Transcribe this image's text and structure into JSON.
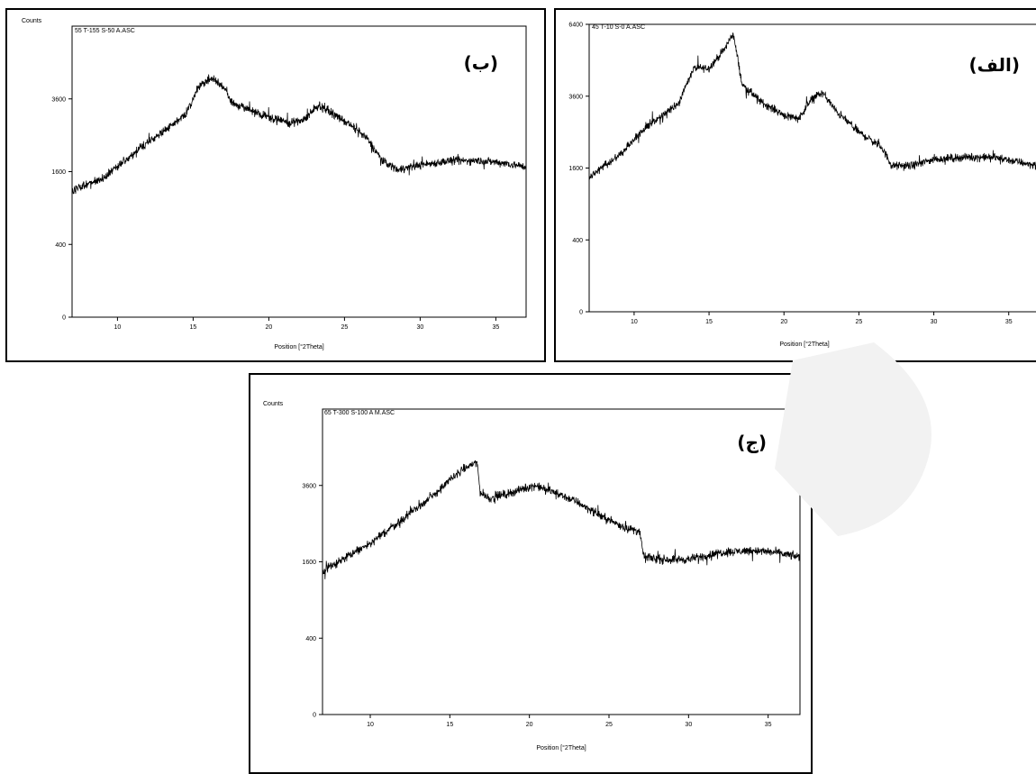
{
  "chart_data": [
    {
      "id": "b",
      "type": "line",
      "panel_label": "(ب)",
      "file_label": "55 T-155 S-50 A.ASC",
      "ylabel": "Counts",
      "xlabel": "Position [°2Theta]",
      "xlim": [
        7,
        37
      ],
      "ylim": [
        0,
        6400
      ],
      "y_scale": "sqrt",
      "xticks": [
        10,
        15,
        20,
        25,
        30,
        35
      ],
      "yticks": [
        0,
        400,
        1600,
        3600
      ],
      "grid": false,
      "profile_x": [
        7,
        9,
        11,
        13,
        14.5,
        15.5,
        16.3,
        17,
        17.5,
        19,
        20.5,
        21.5,
        22.5,
        23.3,
        24.5,
        25.5,
        26.5,
        27.5,
        28.5,
        30,
        32,
        34,
        35.5,
        37
      ],
      "profile_y": [
        1200,
        1450,
        2000,
        2600,
        3100,
        4100,
        4300,
        4000,
        3500,
        3200,
        2950,
        2850,
        3000,
        3400,
        3050,
        2750,
        2400,
        1850,
        1650,
        1750,
        1850,
        1850,
        1800,
        1700
      ]
    },
    {
      "id": "alef",
      "type": "line",
      "panel_label": "(الف)",
      "file_label": "45 T-10 S-0 A.ASC",
      "ylabel": "",
      "xlabel": "Position [°2Theta]",
      "xlim": [
        7,
        37
      ],
      "ylim": [
        0,
        6400
      ],
      "y_scale": "sqrt",
      "xticks": [
        10,
        15,
        20,
        25,
        30,
        35
      ],
      "yticks": [
        0,
        400,
        1600,
        3600,
        6400
      ],
      "grid": false,
      "profile_x": [
        7,
        9,
        11,
        13,
        14,
        15,
        16,
        16.6,
        17.2,
        18.5,
        20,
        21,
        22,
        22.6,
        23.5,
        25,
        26.5,
        27.2,
        28.5,
        30,
        32,
        34,
        35.5,
        37
      ],
      "profile_y": [
        1400,
        1900,
        2700,
        3400,
        4600,
        4600,
        5300,
        6000,
        4000,
        3400,
        3000,
        2900,
        3600,
        3700,
        3100,
        2500,
        2100,
        1650,
        1650,
        1800,
        1850,
        1850,
        1750,
        1650
      ]
    },
    {
      "id": "jim",
      "type": "line",
      "panel_label": "(ج)",
      "file_label": "65 T-300 S-100 A M.ASC",
      "ylabel": "Counts",
      "xlabel": "Position [°2Theta]",
      "xlim": [
        7,
        37
      ],
      "ylim": [
        0,
        6400
      ],
      "y_scale": "sqrt",
      "xticks": [
        10,
        15,
        20,
        25,
        30,
        35
      ],
      "yticks": [
        0,
        400,
        1600,
        3600
      ],
      "grid": false,
      "profile_x": [
        7,
        8.5,
        10,
        12,
        14,
        15.5,
        16.7,
        16.9,
        17.5,
        19,
        20.3,
        21.5,
        23,
        24.5,
        26,
        26.9,
        27.2,
        28.5,
        30,
        32,
        34,
        35.5,
        37
      ],
      "profile_y": [
        1400,
        1700,
        2000,
        2600,
        3300,
        4000,
        4400,
        3400,
        3200,
        3400,
        3600,
        3400,
        3100,
        2700,
        2400,
        2300,
        1700,
        1650,
        1650,
        1800,
        1850,
        1800,
        1700
      ]
    }
  ]
}
